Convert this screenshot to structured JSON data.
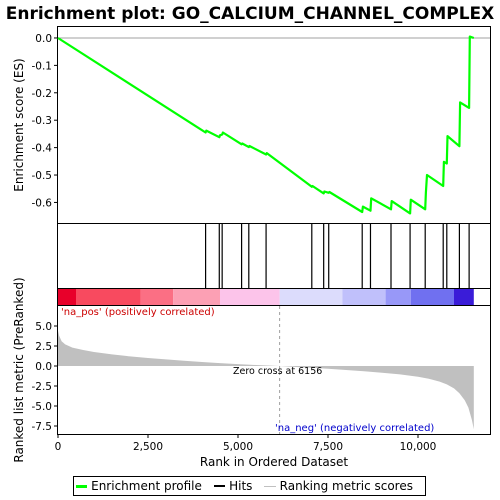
{
  "chart_data": {
    "type": "line",
    "title": "Enrichment plot: GO_CALCIUM_CHANNEL_COMPLEX",
    "xlabel": "Rank in Ordered Dataset",
    "es_ylabel": "Enrichment score (ES)",
    "metric_ylabel": "Ranked list metric (PreRanked)",
    "xlim": [
      0,
      12000
    ],
    "es_ylim": [
      -0.675,
      0.04
    ],
    "metric_ylim": [
      -8.5,
      7.5
    ],
    "x_ticks": [
      {
        "value": 0,
        "label": "0"
      },
      {
        "value": 2500,
        "label": "2,500"
      },
      {
        "value": 5000,
        "label": "5,000"
      },
      {
        "value": 7500,
        "label": "7,500"
      },
      {
        "value": 10000,
        "label": "10,000"
      }
    ],
    "es_ticks": [
      {
        "value": 0.0,
        "label": "0.0"
      },
      {
        "value": -0.1,
        "label": "-0.1"
      },
      {
        "value": -0.2,
        "label": "-0.2"
      },
      {
        "value": -0.3,
        "label": "-0.3"
      },
      {
        "value": -0.4,
        "label": "-0.4"
      },
      {
        "value": -0.5,
        "label": "-0.5"
      },
      {
        "value": -0.6,
        "label": "-0.6"
      }
    ],
    "metric_ticks": [
      {
        "value": 5.0,
        "label": "5.0"
      },
      {
        "value": 2.5,
        "label": "2.5"
      },
      {
        "value": 0.0,
        "label": "0.0"
      },
      {
        "value": -2.5,
        "label": "-2.5"
      },
      {
        "value": -5.0,
        "label": "-5.0"
      },
      {
        "value": -7.5,
        "label": "-7.5"
      }
    ],
    "enrichment_profile": {
      "name": "Enrichment profile",
      "color": "#00ff00",
      "x": [
        0,
        4100,
        4120,
        4480,
        4500,
        4560,
        4580,
        5100,
        5120,
        5300,
        5320,
        5780,
        5800,
        7050,
        7070,
        7380,
        7400,
        7520,
        7540,
        8450,
        8470,
        8680,
        8700,
        9250,
        9270,
        9780,
        9800,
        10200,
        10220,
        10250,
        10700,
        10720,
        10800,
        10820,
        11150,
        11170,
        11420,
        11440,
        11550
      ],
      "y": [
        0.0,
        -0.345,
        -0.338,
        -0.362,
        -0.355,
        -0.352,
        -0.345,
        -0.388,
        -0.385,
        -0.398,
        -0.394,
        -0.425,
        -0.42,
        -0.543,
        -0.54,
        -0.567,
        -0.56,
        -0.565,
        -0.562,
        -0.635,
        -0.615,
        -0.63,
        -0.585,
        -0.625,
        -0.595,
        -0.64,
        -0.59,
        -0.625,
        -0.563,
        -0.5,
        -0.54,
        -0.452,
        -0.458,
        -0.358,
        -0.395,
        -0.235,
        -0.255,
        0.005,
        0.0
      ]
    },
    "hits": {
      "name": "Hits",
      "x": [
        4100,
        4480,
        4560,
        5100,
        5300,
        5780,
        7050,
        7380,
        7520,
        8450,
        8680,
        9250,
        9780,
        10200,
        10700,
        10800,
        11150,
        11420
      ]
    },
    "ranking_metric": {
      "name": "Ranking metric scores",
      "x": [
        0,
        30,
        100,
        200,
        400,
        700,
        1000,
        1500,
        2000,
        2500,
        3000,
        3500,
        4000,
        4500,
        5000,
        5500,
        6000,
        6156,
        6500,
        7000,
        7500,
        8000,
        8500,
        9000,
        9500,
        10000,
        10300,
        10600,
        10800,
        11000,
        11150,
        11300,
        11400,
        11500,
        11550
      ],
      "y": [
        4.4,
        3.8,
        3.1,
        2.7,
        2.3,
        2.0,
        1.75,
        1.45,
        1.2,
        1.0,
        0.82,
        0.65,
        0.5,
        0.36,
        0.24,
        0.12,
        0.03,
        0.0,
        -0.1,
        -0.22,
        -0.35,
        -0.5,
        -0.65,
        -0.85,
        -1.05,
        -1.35,
        -1.6,
        -1.95,
        -2.3,
        -2.8,
        -3.4,
        -4.3,
        -5.2,
        -6.8,
        -7.9
      ]
    },
    "zero_cross": {
      "value": 6156,
      "label": "Zero cross at 6156"
    },
    "annotations": {
      "pos_label": "'na_pos' (positively correlated)",
      "neg_label": "'na_neg' (negatively correlated)"
    },
    "colors": {
      "profile": "#00ff00",
      "hit": "#000000",
      "metric_fill": "#c0c0c0",
      "pos_text": "#cc0000",
      "neg_text": "#0000cc",
      "zero_line": "#a0a0a0"
    },
    "heat_bar": [
      {
        "from": 0,
        "to": 500,
        "color": "#e8002a"
      },
      {
        "from": 500,
        "to": 2300,
        "color": "#f84a5f"
      },
      {
        "from": 2300,
        "to": 3200,
        "color": "#fb6f84"
      },
      {
        "from": 3200,
        "to": 4500,
        "color": "#fca0b4"
      },
      {
        "from": 4500,
        "to": 6156,
        "color": "#fcc4ea"
      },
      {
        "from": 6156,
        "to": 7900,
        "color": "#dcdcfc"
      },
      {
        "from": 7900,
        "to": 9100,
        "color": "#c0c0fb"
      },
      {
        "from": 9100,
        "to": 9800,
        "color": "#9898f8"
      },
      {
        "from": 9800,
        "to": 11000,
        "color": "#7070f0"
      },
      {
        "from": 11000,
        "to": 11550,
        "color": "#3a1cd8"
      }
    ]
  },
  "legend": {
    "items": [
      {
        "label": "Enrichment profile",
        "color": "#00ff00",
        "thickness": 3
      },
      {
        "label": "Hits",
        "color": "#000000",
        "thickness": 2
      },
      {
        "label": "Ranking metric scores",
        "color": "#c0c0c0",
        "thickness": 1
      }
    ]
  }
}
